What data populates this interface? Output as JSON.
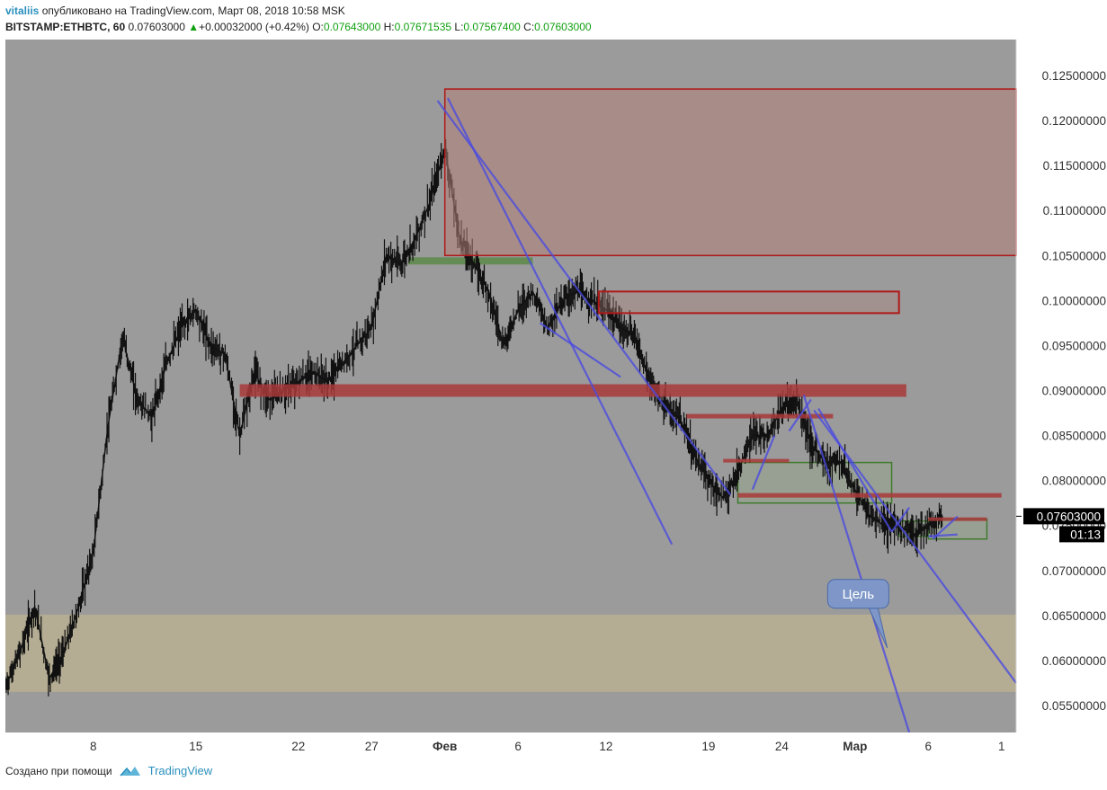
{
  "header": {
    "author": "vitaliis",
    "published": "опубликовано на TradingView.com, Март 08, 2018 10:58 MSK"
  },
  "ohlc": {
    "symbol": "BITSTAMP:ETHBTC, 60",
    "last": "0.07603000",
    "change": "+0.00032000 (+0.42%)",
    "o_label": "O:",
    "o": "0.07643000",
    "h_label": "H:",
    "h": "0.07671535",
    "l_label": "L:",
    "l": "0.07567400",
    "c_label": "C:",
    "c": "0.07603000"
  },
  "footer": {
    "created": "Создано при помощи",
    "brand": "TradingView"
  },
  "chart_data": {
    "type": "line",
    "title": "",
    "xlabel": "",
    "ylabel": "",
    "ylim": [
      0.052,
      0.129
    ],
    "y_ticks": [
      "0.12500000",
      "0.12000000",
      "0.11500000",
      "0.11000000",
      "0.10500000",
      "0.10000000",
      "0.09500000",
      "0.09000000",
      "0.08500000",
      "0.08000000",
      "0.07500000",
      "0.07000000",
      "0.06500000",
      "0.06000000",
      "0.05500000"
    ],
    "y_tick_values": [
      0.125,
      0.12,
      0.115,
      0.11,
      0.105,
      0.1,
      0.095,
      0.09,
      0.085,
      0.08,
      0.075,
      0.07,
      0.065,
      0.06,
      0.055
    ],
    "x_range_days": [
      0,
      69
    ],
    "x_ticks": [
      {
        "label": "8",
        "day": 6
      },
      {
        "label": "15",
        "day": 13
      },
      {
        "label": "22",
        "day": 20
      },
      {
        "label": "27",
        "day": 25
      },
      {
        "label": "Фев",
        "day": 30
      },
      {
        "label": "6",
        "day": 35
      },
      {
        "label": "12",
        "day": 41
      },
      {
        "label": "19",
        "day": 48
      },
      {
        "label": "24",
        "day": 53
      },
      {
        "label": "Мар",
        "day": 58
      },
      {
        "label": "6",
        "day": 63
      },
      {
        "label": "1",
        "day": 68
      }
    ],
    "price_path": [
      [
        0,
        0.057
      ],
      [
        1,
        0.061
      ],
      [
        2,
        0.066
      ],
      [
        3,
        0.058
      ],
      [
        4,
        0.061
      ],
      [
        5,
        0.066
      ],
      [
        6,
        0.072
      ],
      [
        7,
        0.086
      ],
      [
        8,
        0.096
      ],
      [
        9,
        0.089
      ],
      [
        10,
        0.087
      ],
      [
        11,
        0.093
      ],
      [
        12,
        0.097
      ],
      [
        13,
        0.099
      ],
      [
        14,
        0.095
      ],
      [
        15,
        0.094
      ],
      [
        16,
        0.085
      ],
      [
        17,
        0.092
      ],
      [
        18,
        0.089
      ],
      [
        19,
        0.09
      ],
      [
        20,
        0.091
      ],
      [
        21,
        0.092
      ],
      [
        22,
        0.091
      ],
      [
        23,
        0.093
      ],
      [
        24,
        0.095
      ],
      [
        25,
        0.097
      ],
      [
        26,
        0.105
      ],
      [
        27,
        0.104
      ],
      [
        28,
        0.107
      ],
      [
        29,
        0.111
      ],
      [
        30,
        0.117
      ],
      [
        31,
        0.107
      ],
      [
        32,
        0.104
      ],
      [
        33,
        0.101
      ],
      [
        34,
        0.095
      ],
      [
        35,
        0.099
      ],
      [
        36,
        0.101
      ],
      [
        37,
        0.097
      ],
      [
        38,
        0.1
      ],
      [
        39,
        0.101
      ],
      [
        40,
        0.1
      ],
      [
        41,
        0.099
      ],
      [
        42,
        0.097
      ],
      [
        43,
        0.096
      ],
      [
        44,
        0.091
      ],
      [
        45,
        0.088
      ],
      [
        46,
        0.087
      ],
      [
        47,
        0.083
      ],
      [
        48,
        0.08
      ],
      [
        49,
        0.078
      ],
      [
        50,
        0.081
      ],
      [
        51,
        0.085
      ],
      [
        52,
        0.085
      ],
      [
        53,
        0.088
      ],
      [
        54,
        0.089
      ],
      [
        55,
        0.084
      ],
      [
        56,
        0.082
      ],
      [
        57,
        0.082
      ],
      [
        58,
        0.079
      ],
      [
        59,
        0.076
      ],
      [
        60,
        0.075
      ],
      [
        61,
        0.075
      ],
      [
        62,
        0.074
      ],
      [
        63,
        0.075
      ],
      [
        64,
        0.076
      ]
    ],
    "supply_zones": [
      {
        "x0": 30,
        "x1": 69,
        "y0": 0.105,
        "y1": 0.1235,
        "style": "filled-outline"
      },
      {
        "x0": 40.5,
        "x1": 61,
        "y0": 0.0986,
        "y1": 0.101,
        "style": "outline"
      },
      {
        "x0": 16,
        "x1": 61.5,
        "y0": 0.0893,
        "y1": 0.0907,
        "style": "filled"
      },
      {
        "x0": 46.5,
        "x1": 56.5,
        "y0": 0.0869,
        "y1": 0.0874,
        "style": "filled"
      },
      {
        "x0": 49,
        "x1": 53.5,
        "y0": 0.082,
        "y1": 0.0824,
        "style": "filled"
      },
      {
        "x0": 50,
        "x1": 68,
        "y0": 0.0781,
        "y1": 0.0786,
        "style": "filled"
      },
      {
        "x0": 63,
        "x1": 67,
        "y0": 0.0755,
        "y1": 0.0759,
        "style": "filled"
      }
    ],
    "demand_zones": [
      {
        "x0": 27.5,
        "x1": 36,
        "y0": 0.104,
        "y1": 0.1048,
        "style": "filled"
      },
      {
        "x0": 50,
        "x1": 60.5,
        "y0": 0.0775,
        "y1": 0.082,
        "style": "outline"
      },
      {
        "x0": 61,
        "x1": 63,
        "y0": 0.0738,
        "y1": 0.0755,
        "style": "outline"
      },
      {
        "x0": 63,
        "x1": 67,
        "y0": 0.0735,
        "y1": 0.0757,
        "style": "outline"
      },
      {
        "x0": 0,
        "x1": 69,
        "y0": 0.0565,
        "y1": 0.0651,
        "style": "beige"
      }
    ],
    "trend_lines": [
      [
        29.5,
        0.1222,
        49.5,
        0.0784
      ],
      [
        30.2,
        0.1225,
        45.5,
        0.0729
      ],
      [
        36.5,
        0.0975,
        42,
        0.0915
      ],
      [
        54.5,
        0.0895,
        61.7,
        0.052
      ],
      [
        55.2,
        0.0878,
        69,
        0.0575
      ],
      [
        55.5,
        0.088,
        60.5,
        0.0743
      ],
      [
        60.5,
        0.0743,
        61.7,
        0.077
      ],
      [
        63.3,
        0.0735,
        65,
        0.076
      ],
      [
        51,
        0.079,
        52.5,
        0.085
      ],
      [
        53.5,
        0.0855,
        55,
        0.089
      ],
      [
        63,
        0.0738,
        65,
        0.074
      ]
    ],
    "annotation": {
      "text": "Цель",
      "x": 56.5,
      "y": 0.0676,
      "target_x": 60.2,
      "target_y": 0.0614
    },
    "last_price_label": "0.07603000",
    "last_price_value": 0.07603,
    "countdown": "01:13"
  }
}
